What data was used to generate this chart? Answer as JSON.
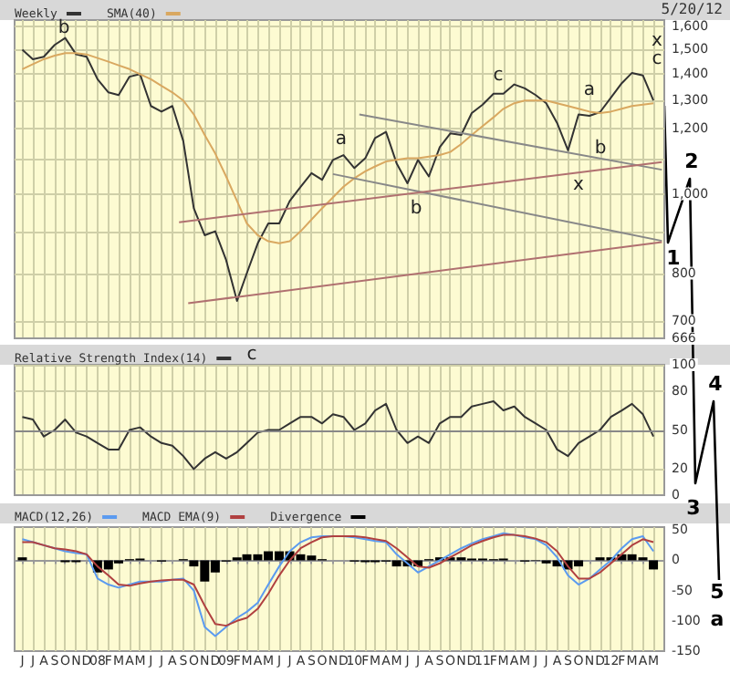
{
  "chart_data": [
    {
      "type": "line",
      "log": true,
      "grid": true,
      "legend": "top left",
      "marker": "none",
      "line_style": "solid",
      "tick_labels": "y",
      "x": [
        "2007-06",
        "2007-07",
        "2007-08",
        "2007-09",
        "2007-10",
        "2007-11",
        "2007-12",
        "2008-01",
        "2008-02",
        "2008-03",
        "2008-04",
        "2008-05",
        "2008-06",
        "2008-07",
        "2008-08",
        "2008-09",
        "2008-10",
        "2008-11",
        "2008-12",
        "2009-01",
        "2009-02",
        "2009-03",
        "2009-04",
        "2009-05",
        "2009-06",
        "2009-07",
        "2009-08",
        "2009-09",
        "2009-10",
        "2009-11",
        "2009-12",
        "2010-01",
        "2010-02",
        "2010-03",
        "2010-04",
        "2010-05",
        "2010-06",
        "2010-07",
        "2010-08",
        "2010-09",
        "2010-10",
        "2010-11",
        "2010-12",
        "2011-01",
        "2011-02",
        "2011-03",
        "2011-04",
        "2011-05",
        "2011-06",
        "2011-07",
        "2011-08",
        "2011-09",
        "2011-10",
        "2011-11",
        "2011-12",
        "2012-01",
        "2012-02",
        "2012-03",
        "2012-04",
        "2012-05"
      ],
      "series": [
        {
          "name": "Weekly",
          "color": "#333333",
          "values": [
            1500,
            1460,
            1470,
            1520,
            1550,
            1480,
            1470,
            1380,
            1330,
            1320,
            1390,
            1400,
            1280,
            1260,
            1280,
            1160,
            960,
            890,
            900,
            830,
            740,
            800,
            870,
            920,
            920,
            980,
            1020,
            1060,
            1040,
            1100,
            1115,
            1075,
            1105,
            1170,
            1190,
            1090,
            1030,
            1100,
            1050,
            1140,
            1185,
            1180,
            1255,
            1285,
            1325,
            1325,
            1360,
            1345,
            1320,
            1290,
            1220,
            1130,
            1250,
            1245,
            1258,
            1310,
            1365,
            1405,
            1395,
            1300
          ]
        },
        {
          "name": "SMA(40)",
          "color": "#d9a860",
          "values": [
            1420,
            1440,
            1460,
            1475,
            1485,
            1485,
            1480,
            1465,
            1450,
            1435,
            1420,
            1400,
            1380,
            1355,
            1330,
            1300,
            1250,
            1180,
            1120,
            1050,
            980,
            920,
            890,
            875,
            870,
            875,
            900,
            930,
            960,
            990,
            1020,
            1045,
            1065,
            1080,
            1095,
            1100,
            1105,
            1105,
            1110,
            1115,
            1125,
            1150,
            1180,
            1210,
            1240,
            1270,
            1290,
            1300,
            1300,
            1300,
            1290,
            1280,
            1270,
            1260,
            1255,
            1260,
            1270,
            1280,
            1285,
            1290
          ]
        },
        {
          "type": "line",
          "color": "#888888",
          "x": [
            "2010-01-15",
            "2012-05-25"
          ],
          "values": [
            1250,
            1070
          ]
        },
        {
          "type": "line",
          "color": "#888888",
          "x": [
            "2009-11-01",
            "2012-05-25"
          ],
          "values": [
            1057,
            876
          ]
        },
        {
          "type": "line",
          "color": "#b07070",
          "x": [
            "2008-08-20",
            "2012-05-25"
          ],
          "values": [
            923,
            1093
          ]
        },
        {
          "type": "line",
          "color": "#b07070",
          "x": [
            "2008-09-15",
            "2012-05-25"
          ],
          "values": [
            735,
            873
          ]
        }
      ],
      "xlim": [
        "2007-05-10",
        "2012-06-01"
      ],
      "ylim": [
        666,
        1630
      ],
      "yticks": [
        666,
        700,
        800,
        {
          "value": 900,
          "label": null
        },
        {
          "value": 1000,
          "label": "1,000"
        },
        {
          "value": 1100,
          "label": null
        },
        {
          "value": 1200,
          "label": "1,200"
        },
        {
          "value": 1300,
          "label": "1,300"
        },
        {
          "value": 1400,
          "label": "1,400"
        },
        {
          "value": 1500,
          "label": "1,500"
        },
        {
          "value": 1600,
          "label": "1,600"
        }
      ],
      "annotations": [
        "5/20/12",
        "b",
        "c",
        "a",
        "b",
        "c",
        "x",
        "a",
        "b",
        "c",
        "x",
        "1",
        "2",
        "3",
        "4",
        "5",
        "a"
      ]
    },
    {
      "type": "line",
      "grid": true,
      "legend": "top left",
      "marker": "none",
      "line_style": "solid",
      "tick_labels": "y",
      "x": [
        "2007-06",
        "2007-07",
        "2007-08",
        "2007-09",
        "2007-10",
        "2007-11",
        "2007-12",
        "2008-01",
        "2008-02",
        "2008-03",
        "2008-04",
        "2008-05",
        "2008-06",
        "2008-07",
        "2008-08",
        "2008-09",
        "2008-10",
        "2008-11",
        "2008-12",
        "2009-01",
        "2009-02",
        "2009-03",
        "2009-04",
        "2009-05",
        "2009-06",
        "2009-07",
        "2009-08",
        "2009-09",
        "2009-10",
        "2009-11",
        "2009-12",
        "2010-01",
        "2010-02",
        "2010-03",
        "2010-04",
        "2010-05",
        "2010-06",
        "2010-07",
        "2010-08",
        "2010-09",
        "2010-10",
        "2010-11",
        "2010-12",
        "2011-01",
        "2011-02",
        "2011-03",
        "2011-04",
        "2011-05",
        "2011-06",
        "2011-07",
        "2011-08",
        "2011-09",
        "2011-10",
        "2011-11",
        "2011-12",
        "2012-01",
        "2012-02",
        "2012-03",
        "2012-04",
        "2012-05"
      ],
      "series": [
        {
          "name": "Relative Strength Index(14)",
          "color": "#333333",
          "values": [
            60,
            58,
            45,
            50,
            58,
            48,
            45,
            40,
            35,
            35,
            50,
            52,
            45,
            40,
            38,
            30,
            20,
            28,
            33,
            28,
            33,
            40,
            48,
            50,
            50,
            55,
            60,
            60,
            55,
            62,
            60,
            50,
            55,
            65,
            70,
            50,
            40,
            45,
            40,
            55,
            60,
            60,
            68,
            70,
            72,
            65,
            68,
            60,
            55,
            50,
            35,
            30,
            40,
            45,
            50,
            60,
            65,
            70,
            62,
            45
          ]
        }
      ],
      "xlim": [
        "2007-05-10",
        "2012-06-01"
      ],
      "ylim": [
        0,
        100
      ],
      "yticks": [
        0,
        20,
        50,
        80,
        100
      ],
      "ref_lines": [
        {
          "axis": "y",
          "value": 50,
          "color": "#888888"
        }
      ]
    },
    {
      "type": "line",
      "grid": "x",
      "legend": "top left",
      "marker": "none",
      "line_style": "solid",
      "x": [
        "2007-06",
        "2007-07",
        "2007-08",
        "2007-09",
        "2007-10",
        "2007-11",
        "2007-12",
        "2008-01",
        "2008-02",
        "2008-03",
        "2008-04",
        "2008-05",
        "2008-06",
        "2008-07",
        "2008-08",
        "2008-09",
        "2008-10",
        "2008-11",
        "2008-12",
        "2009-01",
        "2009-02",
        "2009-03",
        "2009-04",
        "2009-05",
        "2009-06",
        "2009-07",
        "2009-08",
        "2009-09",
        "2009-10",
        "2009-11",
        "2009-12",
        "2010-01",
        "2010-02",
        "2010-03",
        "2010-04",
        "2010-05",
        "2010-06",
        "2010-07",
        "2010-08",
        "2010-09",
        "2010-10",
        "2010-11",
        "2010-12",
        "2011-01",
        "2011-02",
        "2011-03",
        "2011-04",
        "2011-05",
        "2011-06",
        "2011-07",
        "2011-08",
        "2011-09",
        "2011-10",
        "2011-11",
        "2011-12",
        "2012-01",
        "2012-02",
        "2012-03",
        "2012-04",
        "2012-05"
      ],
      "series": [
        {
          "name": "MACD(12,26)",
          "color": "#5b9bf0",
          "values": [
            35,
            30,
            25,
            20,
            15,
            12,
            10,
            -30,
            -40,
            -45,
            -40,
            -35,
            -35,
            -35,
            -32,
            -30,
            -50,
            -110,
            -125,
            -110,
            -95,
            -85,
            -70,
            -40,
            -10,
            15,
            30,
            38,
            40,
            40,
            40,
            38,
            35,
            32,
            30,
            10,
            -5,
            -20,
            -10,
            0,
            10,
            20,
            28,
            35,
            40,
            45,
            42,
            38,
            35,
            25,
            5,
            -25,
            -40,
            -30,
            -15,
            0,
            20,
            35,
            40,
            15
          ]
        },
        {
          "name": "MACD EMA(9)",
          "color": "#b04040",
          "values": [
            30,
            30,
            25,
            20,
            18,
            15,
            10,
            -10,
            -25,
            -40,
            -42,
            -38,
            -35,
            -33,
            -32,
            -32,
            -40,
            -75,
            -105,
            -108,
            -100,
            -95,
            -80,
            -55,
            -25,
            0,
            20,
            30,
            38,
            40,
            40,
            40,
            38,
            35,
            32,
            20,
            5,
            -10,
            -12,
            -5,
            5,
            15,
            25,
            32,
            38,
            42,
            42,
            40,
            36,
            30,
            15,
            -10,
            -30,
            -30,
            -20,
            -5,
            10,
            25,
            35,
            30
          ]
        },
        {
          "name": "Divergence",
          "type": "bar",
          "color": "#000000",
          "values": [
            5,
            0,
            0,
            0,
            -3,
            -3,
            0,
            -20,
            -15,
            -5,
            2,
            3,
            0,
            -2,
            0,
            2,
            -10,
            -35,
            -20,
            -2,
            5,
            10,
            10,
            15,
            15,
            15,
            10,
            8,
            2,
            0,
            0,
            -2,
            -3,
            -3,
            -2,
            -10,
            -10,
            -10,
            2,
            5,
            5,
            5,
            3,
            3,
            2,
            3,
            0,
            -2,
            -1,
            -5,
            -10,
            -15,
            -10,
            0,
            5,
            5,
            10,
            10,
            5,
            -15
          ]
        }
      ],
      "xlim": [
        "2007-05-10",
        "2012-06-01"
      ],
      "xticks": [
        {
          "value": "2007-06",
          "label": "J"
        },
        {
          "value": "2007-07",
          "label": "J"
        },
        {
          "value": "2007-08",
          "label": "A"
        },
        {
          "value": "2007-09",
          "label": "S"
        },
        {
          "value": "2007-10",
          "label": "O"
        },
        {
          "value": "2007-11",
          "label": "N"
        },
        {
          "value": "2007-12",
          "label": "D"
        },
        {
          "value": "2008-01",
          "label": "08"
        },
        {
          "value": "2008-02",
          "label": "F"
        },
        {
          "value": "2008-03",
          "label": "M"
        },
        {
          "value": "2008-04",
          "label": "A"
        },
        {
          "value": "2008-05",
          "label": "M"
        },
        {
          "value": "2008-06",
          "label": "J"
        },
        {
          "value": "2008-07",
          "label": "J"
        },
        {
          "value": "2008-08",
          "label": "A"
        },
        {
          "value": "2008-09",
          "label": "S"
        },
        {
          "value": "2008-10",
          "label": "O"
        },
        {
          "value": "2008-11",
          "label": "N"
        },
        {
          "value": "2008-12",
          "label": "D"
        },
        {
          "value": "2009-01",
          "label": "09"
        },
        {
          "value": "2009-02",
          "label": "F"
        },
        {
          "value": "2009-03",
          "label": "M"
        },
        {
          "value": "2009-04",
          "label": "A"
        },
        {
          "value": "2009-05",
          "label": "M"
        },
        {
          "value": "2009-06",
          "label": "J"
        },
        {
          "value": "2009-07",
          "label": "J"
        },
        {
          "value": "2009-08",
          "label": "A"
        },
        {
          "value": "2009-09",
          "label": "S"
        },
        {
          "value": "2009-10",
          "label": "O"
        },
        {
          "value": "2009-11",
          "label": "N"
        },
        {
          "value": "2009-12",
          "label": "D"
        },
        {
          "value": "2010-01",
          "label": "10"
        },
        {
          "value": "2010-02",
          "label": "F"
        },
        {
          "value": "2010-03",
          "label": "M"
        },
        {
          "value": "2010-04",
          "label": "A"
        },
        {
          "value": "2010-05",
          "label": "M"
        },
        {
          "value": "2010-06",
          "label": "J"
        },
        {
          "value": "2010-07",
          "label": "J"
        },
        {
          "value": "2010-08",
          "label": "A"
        },
        {
          "value": "2010-09",
          "label": "S"
        },
        {
          "value": "2010-10",
          "label": "O"
        },
        {
          "value": "2010-11",
          "label": "N"
        },
        {
          "value": "2010-12",
          "label": "D"
        },
        {
          "value": "2011-01",
          "label": "11"
        },
        {
          "value": "2011-02",
          "label": "F"
        },
        {
          "value": "2011-03",
          "label": "M"
        },
        {
          "value": "2011-04",
          "label": "A"
        },
        {
          "value": "2011-05",
          "label": "M"
        },
        {
          "value": "2011-06",
          "label": "J"
        },
        {
          "value": "2011-07",
          "label": "J"
        },
        {
          "value": "2011-08",
          "label": "A"
        },
        {
          "value": "2011-09",
          "label": "S"
        },
        {
          "value": "2011-10",
          "label": "O"
        },
        {
          "value": "2011-11",
          "label": "N"
        },
        {
          "value": "2011-12",
          "label": "D"
        },
        {
          "value": "2012-01",
          "label": "12"
        },
        {
          "value": "2012-02",
          "label": "F"
        },
        {
          "value": "2012-03",
          "label": "M"
        },
        {
          "value": "2012-04",
          "label": "A"
        },
        {
          "value": "2012-05",
          "label": "M"
        }
      ],
      "ylim": [
        -150,
        55
      ],
      "yticks": [
        -150,
        -100,
        -50,
        0,
        50
      ]
    }
  ]
}
